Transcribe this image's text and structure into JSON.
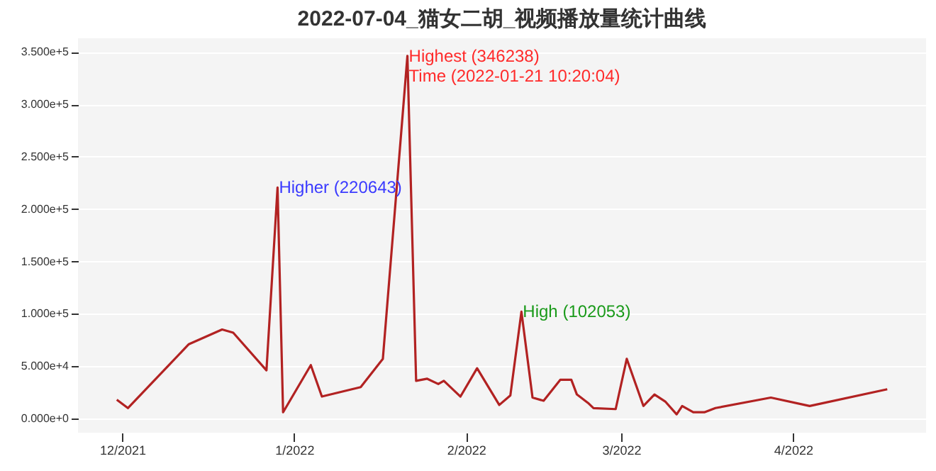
{
  "chart_data": {
    "type": "line",
    "title": "2022-07-04_猫女二胡_视频播放量统计曲线",
    "x": [
      "2021-11-30",
      "2021-12-02",
      "2021-12-13",
      "2021-12-19",
      "2021-12-21",
      "2021-12-27",
      "2021-12-29",
      "2021-12-30",
      "2022-01-04",
      "2022-01-06",
      "2022-01-13",
      "2022-01-17",
      "2022-01-21T10:20",
      "2022-01-23",
      "2022-01-25",
      "2022-01-27",
      "2022-01-28",
      "2022-01-31",
      "2022-02-03",
      "2022-02-07",
      "2022-02-09",
      "2022-02-11",
      "2022-02-13",
      "2022-02-15",
      "2022-02-18",
      "2022-02-20",
      "2022-02-21",
      "2022-02-23",
      "2022-02-24",
      "2022-02-28",
      "2022-03-02",
      "2022-03-05",
      "2022-03-07",
      "2022-03-09",
      "2022-03-11",
      "2022-03-12",
      "2022-03-14",
      "2022-03-16",
      "2022-03-18",
      "2022-03-28",
      "2022-04-04",
      "2022-04-18"
    ],
    "series": [
      {
        "color": "#b22222",
        "values": [
          18000,
          10000,
          71000,
          85000,
          82000,
          46000,
          220643,
          6000,
          51000,
          21000,
          30000,
          57000,
          346238,
          36000,
          38000,
          33000,
          36000,
          21000,
          48000,
          13000,
          22000,
          102053,
          20000,
          17000,
          37000,
          37000,
          23000,
          15000,
          10000,
          9000,
          57000,
          12000,
          23000,
          16000,
          4000,
          12000,
          6000,
          6000,
          10000,
          20000,
          12000,
          28000
        ]
      }
    ],
    "xlim": [
      "2021-11-23",
      "2022-04-25"
    ],
    "xticks": [
      {
        "value": "2021-12",
        "label": "12/2021"
      },
      {
        "value": "2022-01",
        "label": "1/2022"
      },
      {
        "value": "2022-02",
        "label": "2/2022"
      },
      {
        "value": "2022-03",
        "label": "3/2022"
      },
      {
        "value": "2022-04",
        "label": "4/2022"
      }
    ],
    "ylim": [
      -13500,
      363000
    ],
    "yticks": [
      {
        "value": 0,
        "label": "0.000e+0"
      },
      {
        "value": 50000,
        "label": "5.000e+4"
      },
      {
        "value": 100000,
        "label": "1.000e+5"
      },
      {
        "value": 150000,
        "label": "1.500e+5"
      },
      {
        "value": 200000,
        "label": "2.000e+5"
      },
      {
        "value": 250000,
        "label": "2.500e+5"
      },
      {
        "value": 300000,
        "label": "3.000e+5"
      },
      {
        "value": 350000,
        "label": "3.500e+5"
      }
    ],
    "grid": "y",
    "annotations": [
      {
        "text": "Highest  (346238)",
        "x": "2022-01-21T10:20",
        "y": 346238
      },
      {
        "text": "Time  (2022-01-21 10:20:04)",
        "x": "2022-01-21T10:20",
        "y": 346238
      },
      {
        "text": "Higher  (220643)",
        "x": "2021-12-29",
        "y": 220643
      },
      {
        "text": "High  (102053)",
        "x": "2022-02-11",
        "y": 102053
      }
    ]
  }
}
